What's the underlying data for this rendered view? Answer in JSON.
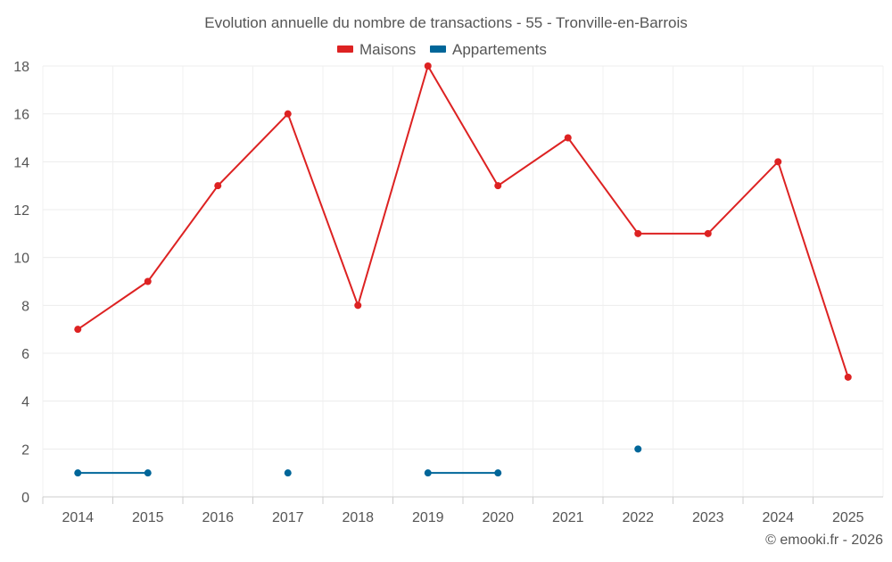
{
  "chart_data": {
    "type": "line",
    "title": "Evolution annuelle du nombre de transactions - 55 - Tronville-en-Barrois",
    "categories": [
      "2014",
      "2015",
      "2016",
      "2017",
      "2018",
      "2019",
      "2020",
      "2021",
      "2022",
      "2023",
      "2024",
      "2025"
    ],
    "series": [
      {
        "name": "Maisons",
        "color": "#dd2222",
        "values": [
          7,
          9,
          13,
          16,
          8,
          18,
          13,
          15,
          11,
          11,
          14,
          5
        ]
      },
      {
        "name": "Appartements",
        "color": "#006699",
        "values": [
          1,
          1,
          null,
          1,
          null,
          1,
          1,
          null,
          2,
          null,
          null,
          null
        ]
      }
    ],
    "yticks": [
      "0",
      "2",
      "4",
      "6",
      "8",
      "10",
      "12",
      "14",
      "16",
      "18"
    ],
    "ylim": [
      0,
      18
    ],
    "xlabel": "",
    "ylabel": "",
    "grid": true,
    "legend": "top-center",
    "credit": "© emooki.fr - 2026"
  }
}
